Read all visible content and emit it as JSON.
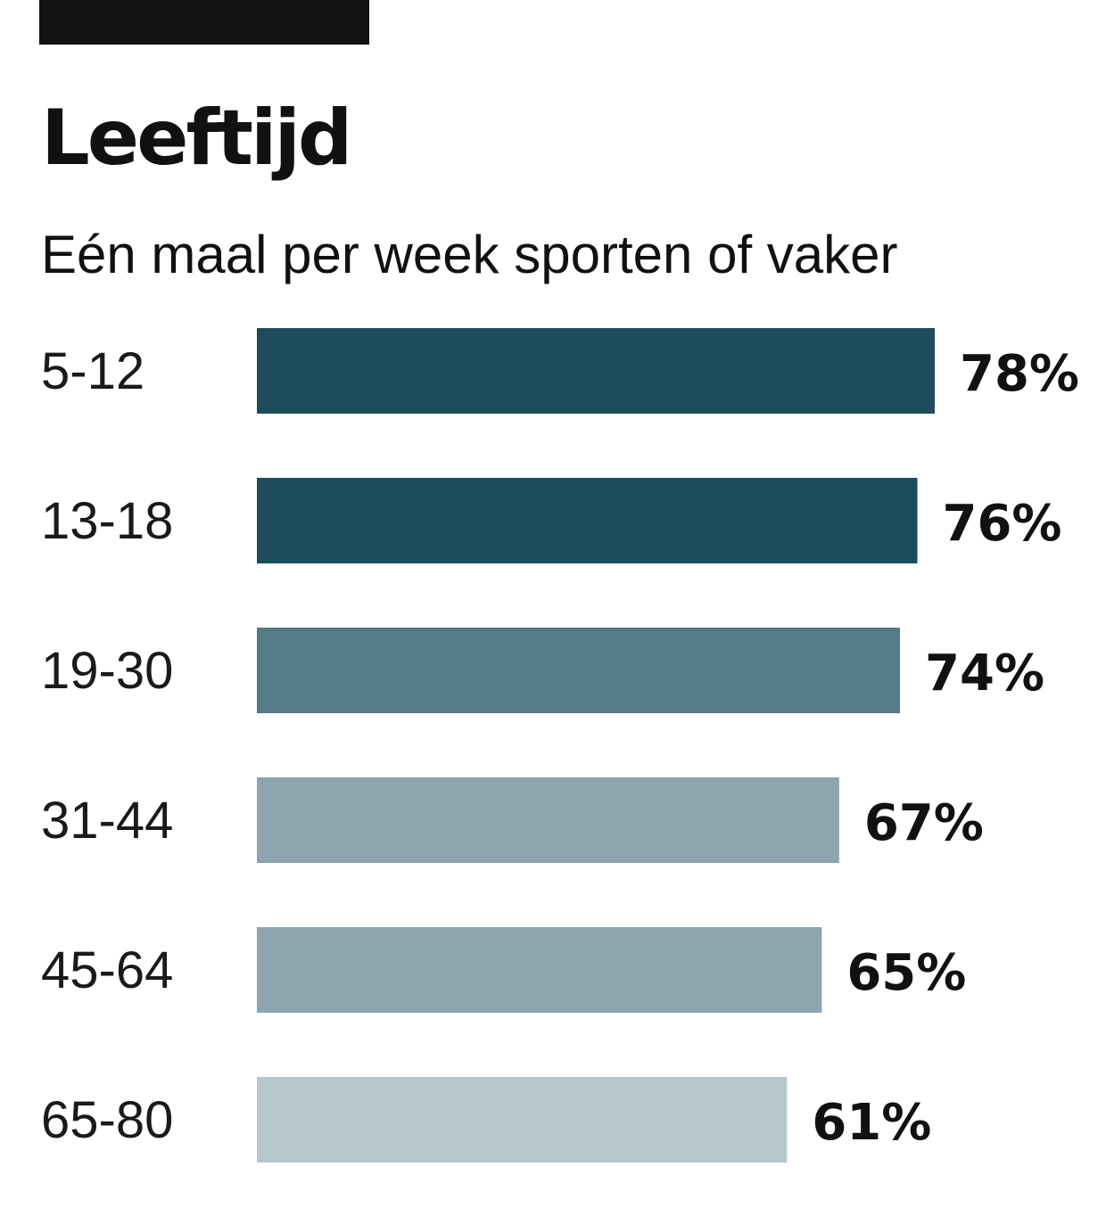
{
  "chart_data": {
    "type": "bar",
    "orientation": "horizontal",
    "title": "Leeftijd",
    "subtitle": "Eén maal per week sporten of vaker",
    "categories": [
      "5-12",
      "13-18",
      "19-30",
      "31-44",
      "45-64",
      "65-80"
    ],
    "values": [
      78,
      76,
      74,
      67,
      65,
      61
    ],
    "value_labels": [
      "78%",
      "76%",
      "74%",
      "67%",
      "65%",
      "61%"
    ],
    "bar_colors": [
      "#1d4d5c",
      "#1d4d5c",
      "#557a88",
      "#8da5af",
      "#8da5af",
      "#b6c7cd"
    ],
    "xlim": [
      0,
      100
    ],
    "grid": false,
    "legend": "none"
  },
  "colors": {
    "top_bar": "#121212",
    "text": "#111111"
  }
}
